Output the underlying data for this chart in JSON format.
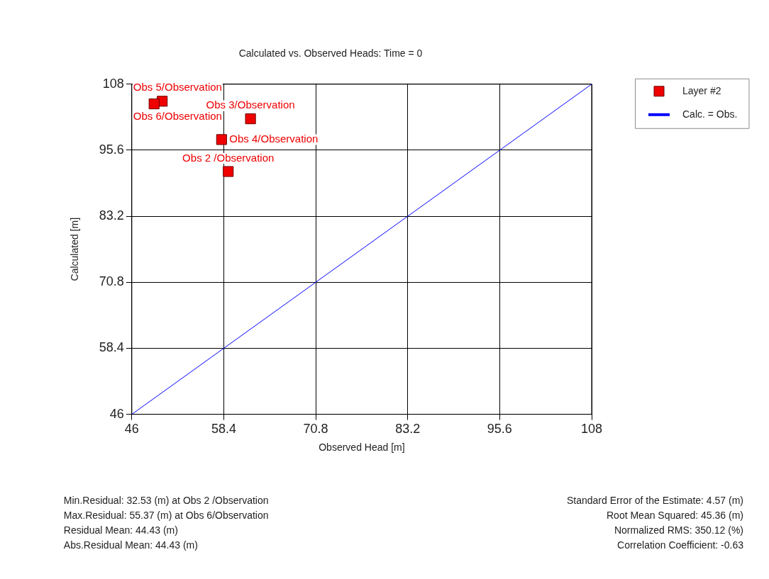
{
  "chart_data": {
    "type": "scatter",
    "title": "Calculated vs. Observed Heads: Time = 0",
    "xlabel": "Observed Head [m]",
    "ylabel": "Calculated [m]",
    "series": [
      {
        "name": "Layer #2",
        "color": "#ee0000",
        "x": [
          50.1,
          62.0,
          49.0,
          58.1,
          59.0
        ],
        "values": [
          104.8,
          101.5,
          104.3,
          97.6,
          91.6
        ]
      },
      {
        "name": "Calc. = Obs.",
        "type": "line",
        "color": "#0000ff",
        "marker": "none",
        "x": [
          46,
          108
        ],
        "values": [
          46,
          108
        ]
      }
    ],
    "xlim": [
      46,
      108
    ],
    "ylim": [
      46,
      108
    ],
    "xticks": [
      46,
      58.4,
      70.8,
      83.2,
      95.6,
      108
    ],
    "yticks": [
      46,
      58.4,
      70.8,
      83.2,
      95.6,
      108
    ],
    "grid": true,
    "legend": "top right",
    "marker": "square",
    "annotations": [
      {
        "text": "Obs 5/Observation",
        "x": 50.1,
        "y": 104.8
      },
      {
        "text": "Obs 3/Observation",
        "x": 62.0,
        "y": 101.5
      },
      {
        "text": "Obs 6/Observation",
        "x": 49.0,
        "y": 104.3
      },
      {
        "text": "Obs 4/Observation",
        "x": 58.1,
        "y": 97.6
      },
      {
        "text": "Obs 2 /Observation",
        "x": 59.0,
        "y": 91.6
      },
      "Min.Residual: 32.53 (m) at Obs 2 /Observation",
      "Max.Residual: 55.37 (m) at Obs 6/Observation",
      "Residual Mean: 44.43 (m)",
      "Abs.Residual Mean: 44.43 (m)",
      "Standard Error of the Estimate: 4.57 (m)",
      "Root Mean Squared: 45.36 (m)",
      "Normalized RMS: 350.12 (%)",
      "Correlation Coefficient: -0.63"
    ]
  }
}
